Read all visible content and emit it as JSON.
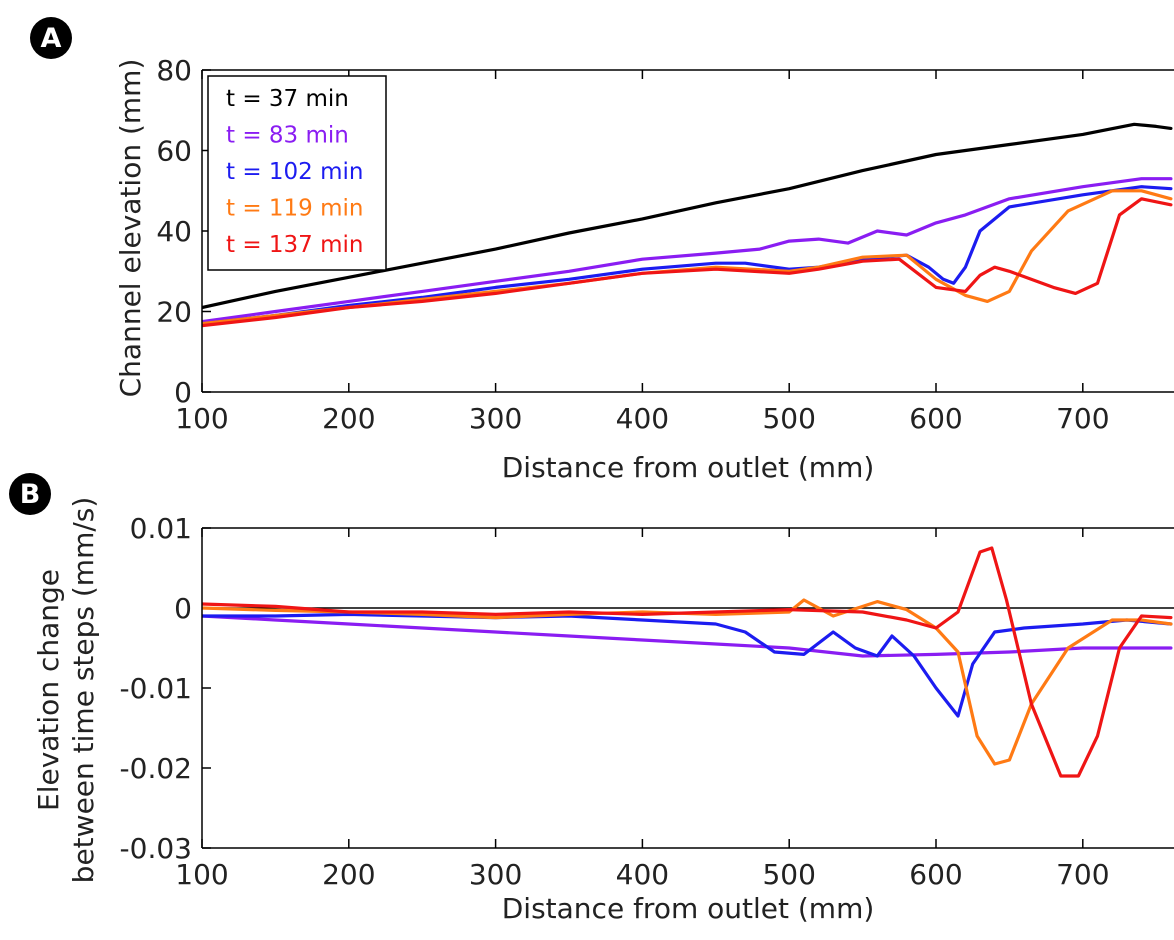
{
  "panels": [
    {
      "letter": "A"
    },
    {
      "letter": "B"
    }
  ],
  "chart_data": [
    {
      "type": "line",
      "panel": "A",
      "title": "",
      "xlabel": "Distance from outlet (mm)",
      "ylabel": "Channel elevation (mm)",
      "xlim": [
        100,
        760
      ],
      "ylim": [
        0,
        80
      ],
      "xticks": [
        "100",
        "200",
        "300",
        "400",
        "500",
        "600",
        "700"
      ],
      "yticks": [
        "0",
        "20",
        "40",
        "60",
        "80"
      ],
      "legend_position": "top-left",
      "series": [
        {
          "name": "t = 37 min",
          "color": "#000000",
          "x": [
            100,
            150,
            200,
            250,
            300,
            350,
            400,
            450,
            500,
            550,
            600,
            650,
            700,
            735,
            750,
            760
          ],
          "y": [
            21,
            25,
            28.5,
            32,
            35.5,
            39.5,
            43,
            47,
            50.5,
            55,
            59,
            61.5,
            64,
            66.5,
            66,
            65.5
          ]
        },
        {
          "name": "t = 83 min",
          "color": "#8a1df2",
          "x": [
            100,
            150,
            200,
            250,
            300,
            350,
            400,
            450,
            480,
            500,
            520,
            540,
            560,
            580,
            600,
            620,
            650,
            700,
            740,
            760
          ],
          "y": [
            17.5,
            20,
            22.5,
            25,
            27.5,
            30,
            33,
            34.5,
            35.5,
            37.5,
            38,
            37,
            40,
            39,
            42,
            44,
            48,
            51,
            53,
            53
          ]
        },
        {
          "name": "t = 102 min",
          "color": "#1c1cf0",
          "x": [
            100,
            150,
            200,
            250,
            300,
            350,
            400,
            450,
            470,
            500,
            520,
            550,
            580,
            595,
            605,
            612,
            620,
            630,
            650,
            700,
            740,
            760
          ],
          "y": [
            17,
            19,
            21.5,
            23.5,
            26,
            28,
            30.5,
            32,
            32,
            30.5,
            31,
            33,
            34,
            31,
            28,
            27,
            31,
            40,
            46,
            49,
            51,
            50.5
          ]
        },
        {
          "name": "t = 119 min",
          "color": "#ff7a14",
          "x": [
            100,
            150,
            200,
            250,
            300,
            350,
            400,
            450,
            500,
            520,
            550,
            580,
            600,
            620,
            635,
            650,
            665,
            690,
            720,
            740,
            760
          ],
          "y": [
            17,
            19,
            21,
            23,
            25,
            27,
            29.5,
            31,
            30,
            31,
            33.5,
            34,
            28,
            24,
            22.5,
            25,
            35,
            45,
            50,
            50,
            48
          ]
        },
        {
          "name": "t = 137 min",
          "color": "#ef1515",
          "x": [
            100,
            150,
            200,
            250,
            300,
            350,
            400,
            450,
            500,
            520,
            550,
            575,
            600,
            620,
            630,
            640,
            650,
            680,
            695,
            710,
            725,
            740,
            760
          ],
          "y": [
            16.5,
            18.5,
            21,
            22.5,
            24.5,
            27,
            29.5,
            30.5,
            29.5,
            30.5,
            32.5,
            33,
            26,
            25,
            29,
            31,
            30,
            26,
            24.5,
            27,
            44,
            48,
            46.5
          ]
        }
      ]
    },
    {
      "type": "line",
      "panel": "B",
      "title": "",
      "xlabel": "Distance from outlet (mm)",
      "ylabel": [
        "Elevation change",
        "between time steps (mm/s)"
      ],
      "xlim": [
        100,
        760
      ],
      "ylim": [
        -0.03,
        0.01
      ],
      "xticks": [
        "100",
        "200",
        "300",
        "400",
        "500",
        "600",
        "700"
      ],
      "yticks": [
        "-0.03",
        "-0.02",
        "-0.01",
        "0",
        "0.01"
      ],
      "reference_line_y": 0,
      "series": [
        {
          "color": "#8a1df2",
          "x": [
            100,
            150,
            200,
            250,
            300,
            350,
            400,
            450,
            500,
            550,
            600,
            650,
            700,
            760
          ],
          "y": [
            -0.001,
            -0.0015,
            -0.002,
            -0.0025,
            -0.003,
            -0.0035,
            -0.004,
            -0.0045,
            -0.005,
            -0.006,
            -0.0058,
            -0.0055,
            -0.005,
            -0.005
          ]
        },
        {
          "color": "#1c1cf0",
          "x": [
            100,
            150,
            200,
            250,
            300,
            350,
            400,
            450,
            470,
            490,
            510,
            530,
            545,
            560,
            570,
            585,
            600,
            615,
            625,
            640,
            660,
            700,
            730,
            760
          ],
          "y": [
            -0.001,
            -0.001,
            -0.0008,
            -0.001,
            -0.0012,
            -0.001,
            -0.0015,
            -0.002,
            -0.003,
            -0.0055,
            -0.0058,
            -0.003,
            -0.005,
            -0.006,
            -0.0035,
            -0.006,
            -0.01,
            -0.0135,
            -0.007,
            -0.003,
            -0.0025,
            -0.002,
            -0.0015,
            -0.002
          ]
        },
        {
          "color": "#ff7a14",
          "x": [
            100,
            150,
            200,
            250,
            300,
            350,
            400,
            450,
            500,
            510,
            530,
            560,
            580,
            600,
            615,
            628,
            640,
            650,
            665,
            690,
            720,
            740,
            760
          ],
          "y": [
            0,
            -0.0003,
            -0.0005,
            -0.0008,
            -0.0012,
            -0.0008,
            -0.0005,
            -0.0008,
            -0.0005,
            0.001,
            -0.001,
            0.0008,
            -0.0002,
            -0.0025,
            -0.0055,
            -0.016,
            -0.0195,
            -0.019,
            -0.012,
            -0.005,
            -0.0015,
            -0.0015,
            -0.002
          ]
        },
        {
          "color": "#ef1515",
          "x": [
            100,
            150,
            200,
            250,
            300,
            350,
            400,
            450,
            500,
            550,
            580,
            600,
            615,
            630,
            638,
            648,
            665,
            685,
            697,
            710,
            725,
            740,
            760
          ],
          "y": [
            0.0005,
            0.0002,
            -0.0005,
            -0.0005,
            -0.0008,
            -0.0005,
            -0.0008,
            -0.0005,
            -0.0002,
            -0.0005,
            -0.0015,
            -0.0025,
            -0.0005,
            0.007,
            0.0075,
            0.001,
            -0.012,
            -0.021,
            -0.021,
            -0.016,
            -0.005,
            -0.001,
            -0.0012
          ]
        }
      ]
    }
  ]
}
